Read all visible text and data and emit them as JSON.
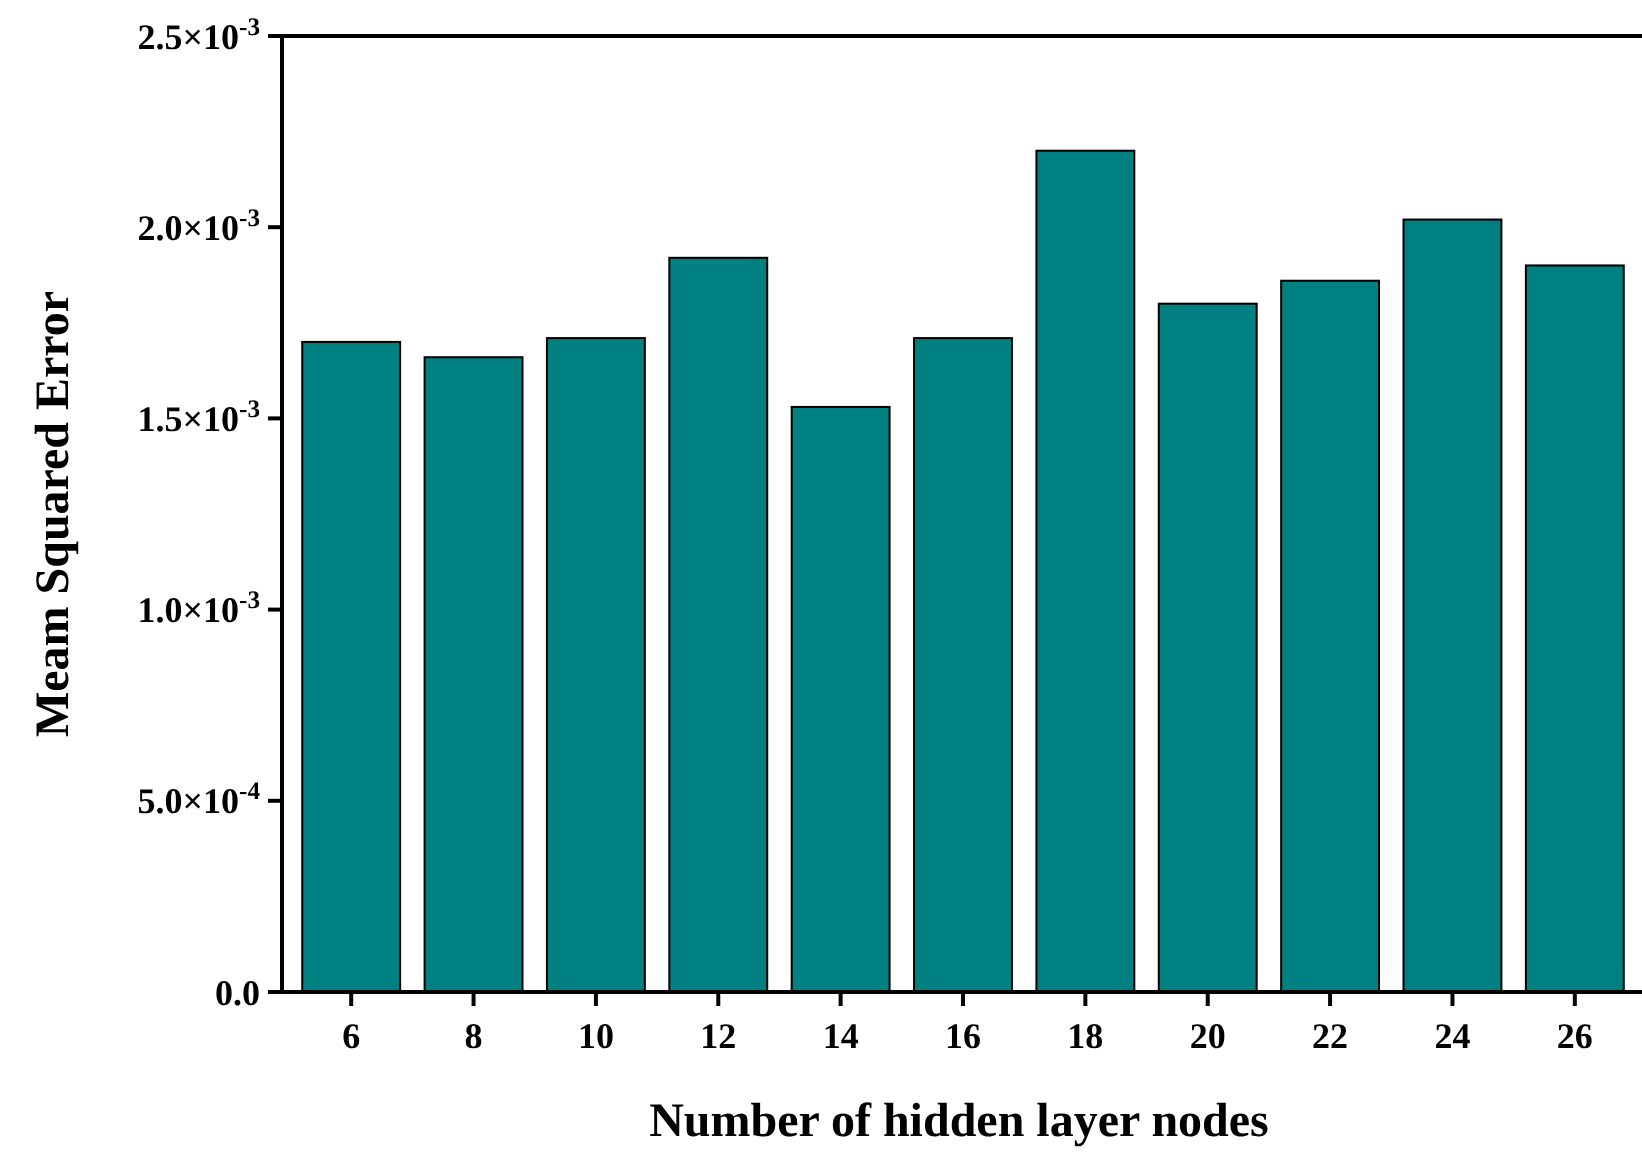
{
  "chart_data": {
    "type": "bar",
    "xlabel": "Number of hidden layer nodes",
    "ylabel": "Meam Squared Error",
    "categories": [
      "6",
      "8",
      "10",
      "12",
      "14",
      "16",
      "18",
      "20",
      "22",
      "24",
      "26"
    ],
    "values": [
      0.0017,
      0.00166,
      0.00171,
      0.00192,
      0.00153,
      0.00171,
      0.0022,
      0.0018,
      0.00186,
      0.00202,
      0.0019
    ],
    "color": "#008080",
    "ylim": [
      0,
      0.0025
    ],
    "yticks": [
      {
        "value": 0,
        "label": "0.0"
      },
      {
        "value": 0.0005,
        "label": "5.0×10$^{-4}$"
      },
      {
        "value": 0.001,
        "label": "1.0×10$^{-3}$"
      },
      {
        "value": 0.0015,
        "label": "1.5×10$^{-3}$"
      },
      {
        "value": 0.002,
        "label": "2.0×10$^{-3}$"
      },
      {
        "value": 0.0025,
        "label": "2.5×10$^{-3}$"
      }
    ],
    "grid": false
  }
}
